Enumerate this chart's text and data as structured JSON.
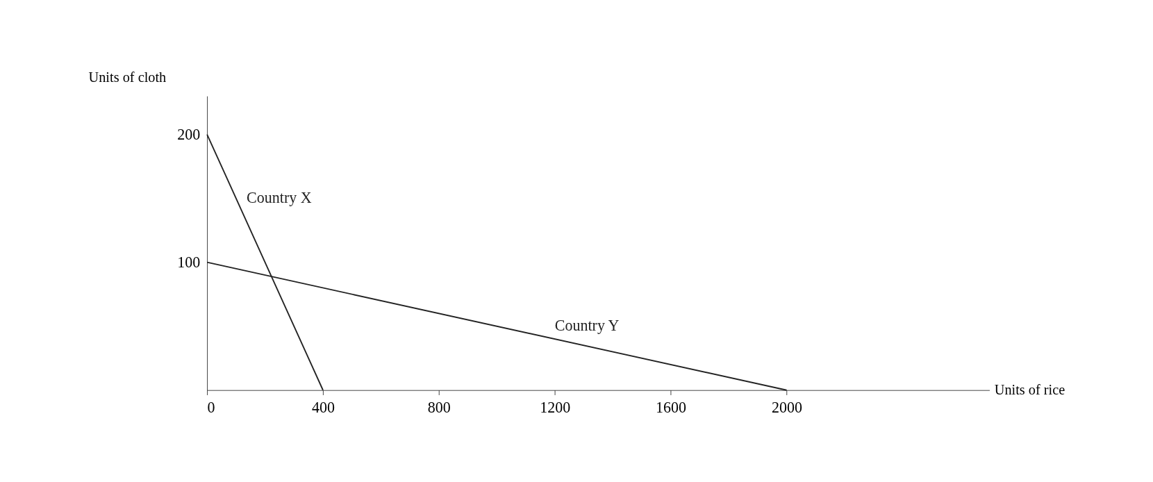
{
  "chart_data": {
    "type": "line",
    "xlabel": "Units of rice",
    "ylabel": "Units of cloth",
    "series": [
      {
        "name": "Country X",
        "color": "#222222",
        "x": [
          0,
          400
        ],
        "values": [
          200,
          0
        ]
      },
      {
        "name": "Country Y",
        "color": "#222222",
        "x": [
          0,
          2000
        ],
        "values": [
          100,
          0
        ]
      }
    ],
    "xlim": [
      0,
      2700
    ],
    "ylim": [
      0,
      230
    ],
    "xticks": [
      0,
      400,
      800,
      1200,
      1600,
      2000
    ],
    "yticks": [
      100,
      200
    ],
    "grid": false,
    "legend": false,
    "marker": "none",
    "line_style": "solid"
  }
}
